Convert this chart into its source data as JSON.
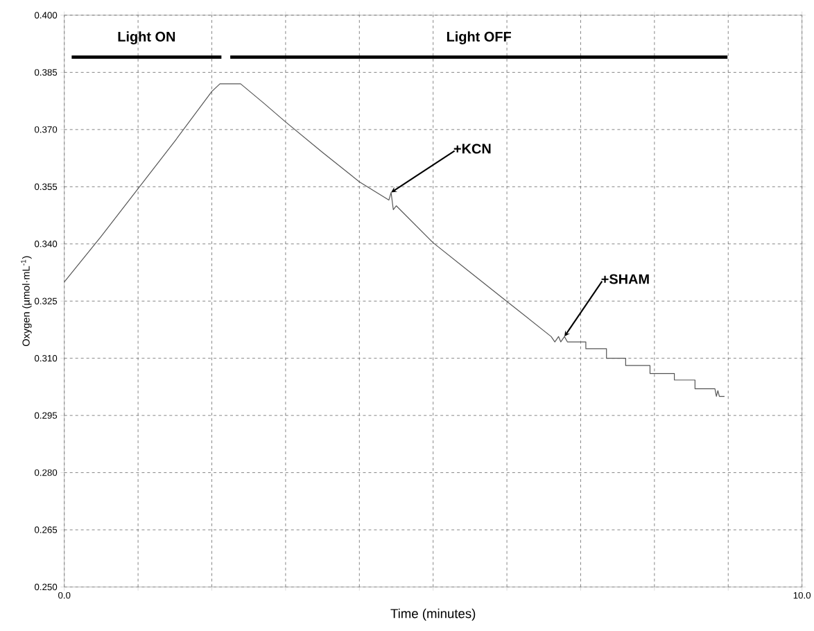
{
  "chart_data": {
    "type": "line",
    "xlabel": "Time (minutes)",
    "ylabel": "Oxygen (µmol·mL$^{-1}$)",
    "xlim": [
      0,
      10
    ],
    "ylim": [
      0.25,
      0.4
    ],
    "xticks": [
      {
        "value": 0,
        "label": "0.0"
      },
      {
        "value": 1,
        "label": null
      },
      {
        "value": 2,
        "label": null
      },
      {
        "value": 3,
        "label": null
      },
      {
        "value": 4,
        "label": null
      },
      {
        "value": 5,
        "label": null
      },
      {
        "value": 6,
        "label": null
      },
      {
        "value": 7,
        "label": null
      },
      {
        "value": 8,
        "label": null
      },
      {
        "value": 9,
        "label": null
      },
      {
        "value": 10,
        "label": "10.0"
      }
    ],
    "yticks": [
      {
        "value": 0.25,
        "label": "0.250"
      },
      {
        "value": 0.265,
        "label": "0.265"
      },
      {
        "value": 0.28,
        "label": "0.280"
      },
      {
        "value": 0.295,
        "label": "0.295"
      },
      {
        "value": 0.31,
        "label": "0.310"
      },
      {
        "value": 0.325,
        "label": "0.325"
      },
      {
        "value": 0.34,
        "label": "0.340"
      },
      {
        "value": 0.355,
        "label": "0.355"
      },
      {
        "value": 0.37,
        "label": "0.370"
      },
      {
        "value": 0.385,
        "label": "0.385"
      },
      {
        "value": 0.4,
        "label": "0.400"
      }
    ],
    "grid": true,
    "line_style": "solid",
    "marker": "none",
    "series": [
      {
        "color": "#555555",
        "x": [
          0,
          0.5,
          1.0,
          1.5,
          2.0,
          2.11,
          2.39,
          2.7,
          3.0,
          3.5,
          4.0,
          4.4,
          4.43,
          4.46,
          4.5,
          5.0,
          5.5,
          6.0,
          6.6,
          6.65,
          6.7,
          6.73,
          6.78,
          6.82,
          7.07,
          7.07,
          7.35,
          7.35,
          7.61,
          7.61,
          7.94,
          7.94,
          8.27,
          8.27,
          8.55,
          8.55,
          8.82,
          8.84,
          8.86,
          8.88,
          8.95
        ],
        "values": [
          0.33,
          0.342,
          0.3545,
          0.367,
          0.38,
          0.382,
          0.382,
          0.377,
          0.372,
          0.364,
          0.3563,
          0.3515,
          0.3535,
          0.349,
          0.35,
          0.3403,
          0.3326,
          0.3249,
          0.3157,
          0.3143,
          0.3157,
          0.3143,
          0.3157,
          0.3143,
          0.3143,
          0.3125,
          0.3125,
          0.31,
          0.31,
          0.3081,
          0.3081,
          0.306,
          0.306,
          0.3043,
          0.3043,
          0.302,
          0.302,
          0.3,
          0.3015,
          0.3,
          0.3
        ]
      },
      {
        "name": "Light ON",
        "color": "#000000",
        "x": [
          0.1,
          2.13
        ],
        "values": [
          0.389,
          0.389
        ]
      },
      {
        "name": "Light OFF",
        "color": "#000000",
        "x": [
          2.25,
          8.99
        ],
        "values": [
          0.389,
          0.389
        ]
      }
    ],
    "annotations": [
      {
        "text": "+KCN",
        "x": 4.43,
        "y": 0.3535
      },
      {
        "text": "+SHAM",
        "x": 6.78,
        "y": 0.3157
      }
    ]
  }
}
